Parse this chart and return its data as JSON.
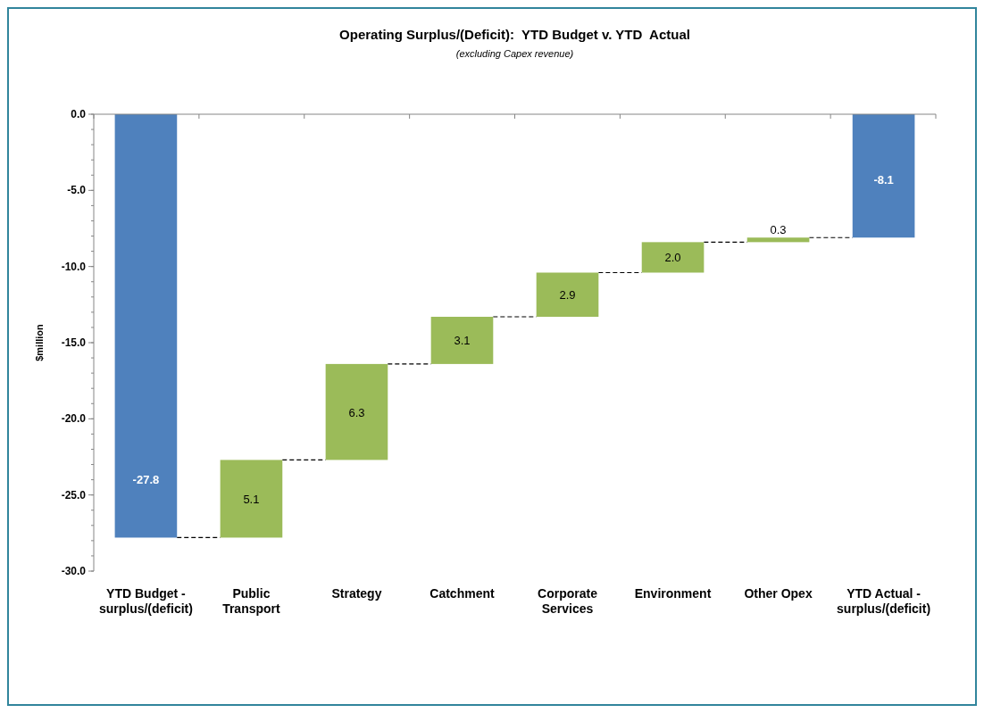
{
  "chart_data": {
    "type": "bar",
    "title": "Operating Surplus/(Deficit):  YTD Budget v. YTD  Actual",
    "subtitle": "(excluding Capex revenue)",
    "ylabel": "$million",
    "categories": [
      "YTD Budget - surplus/(deficit)",
      "Public Transport",
      "Strategy",
      "Catchment",
      "Corporate Services",
      "Environment",
      "Other Opex",
      "YTD Actual - surplus/(deficit)"
    ],
    "values": [
      -27.8,
      5.1,
      6.3,
      3.1,
      2.9,
      2.0,
      0.3,
      -8.1
    ],
    "base": [
      0,
      -27.8,
      -22.7,
      -16.4,
      -13.3,
      -10.4,
      -8.4,
      0
    ],
    "colors": [
      "#4f81bd",
      "#9bbb59",
      "#9bbb59",
      "#9bbb59",
      "#9bbb59",
      "#9bbb59",
      "#9bbb59",
      "#4f81bd"
    ],
    "ylim": [
      -30,
      0
    ],
    "yticks": [
      {
        "value": -30,
        "label": "-30.0"
      },
      {
        "value": -25,
        "label": "-25.0"
      },
      {
        "value": -20,
        "label": "-20.0"
      },
      {
        "value": -15,
        "label": "-15.0"
      },
      {
        "value": -10,
        "label": "-10.0"
      },
      {
        "value": -5,
        "label": "-5.0"
      },
      {
        "value": 0,
        "label": "0.0"
      }
    ],
    "value_labels": [
      "-27.8",
      "5.1",
      "6.3",
      "3.1",
      "2.9",
      "2.0",
      "0.3",
      "-8.1"
    ]
  }
}
